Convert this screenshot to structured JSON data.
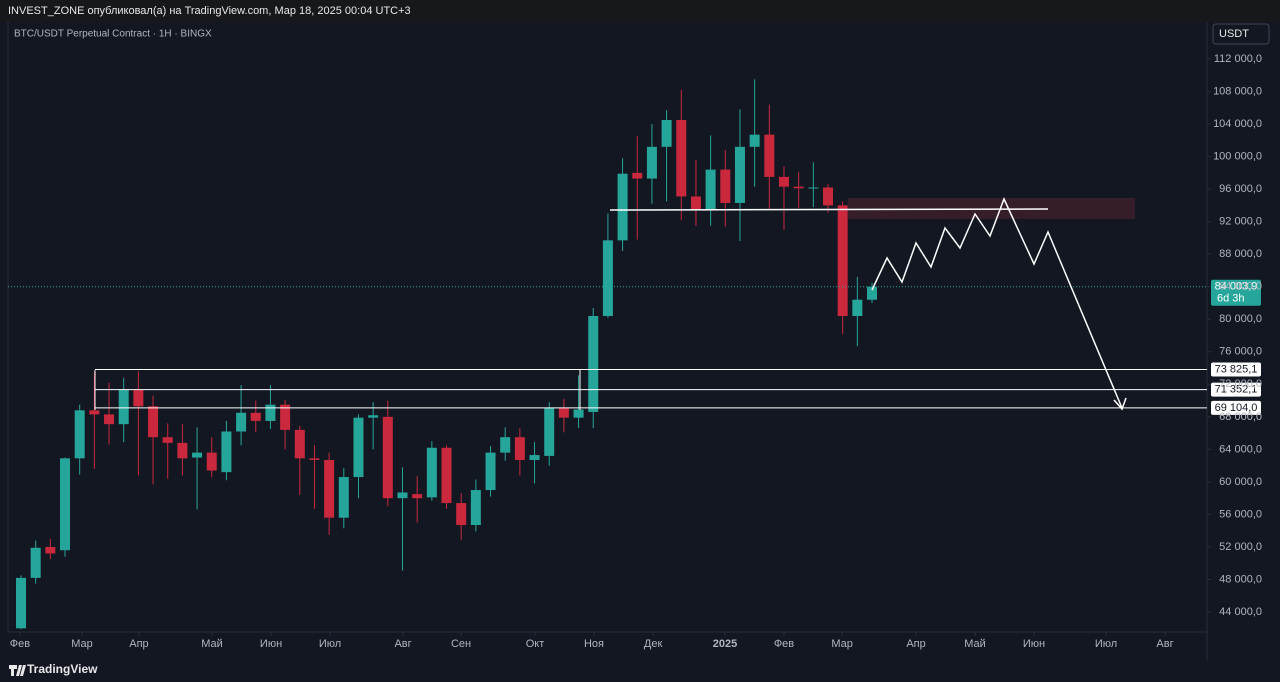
{
  "header": {
    "publisher": "INVEST_ZONE опубликовал(а) на TradingView.com, Мар 18, 2025 00:04 UTC+3"
  },
  "chart_data": {
    "type": "candlestick",
    "title": "BTC/USDT Perpetual Contract · 1H · BINGX",
    "currency": "USDT",
    "up_color": "#26a69a",
    "down_color": "#c9283d",
    "x": [
      0,
      1,
      2,
      3,
      4,
      5,
      6,
      7,
      8,
      9,
      10,
      11,
      12,
      13,
      14,
      15,
      16,
      17,
      18,
      19,
      20,
      21,
      22,
      23,
      24,
      25,
      26,
      27,
      28,
      29,
      30,
      31,
      32,
      33,
      34,
      35,
      36,
      37,
      38,
      39,
      40,
      41,
      42,
      43,
      44,
      45,
      46,
      47,
      48,
      49,
      50,
      51,
      52,
      53,
      54,
      55,
      56,
      57,
      58
    ],
    "open": [
      42000,
      48200,
      52000,
      51600,
      62900,
      68800,
      68300,
      67100,
      71300,
      69300,
      65500,
      64800,
      63000,
      63600,
      61200,
      66200,
      68500,
      67500,
      69500,
      66400,
      62900,
      62700,
      55600,
      60600,
      67900,
      68000,
      58000,
      58500,
      58100,
      64200,
      57400,
      54700,
      59000,
      63600,
      65500,
      62700,
      63200,
      69100,
      67900,
      68600,
      80400,
      89700,
      98000,
      97300,
      101200,
      104500,
      95100,
      93500,
      98400,
      94300,
      101200,
      102700,
      97500,
      96300,
      96100,
      96200,
      94000,
      80400,
      82400
    ],
    "high": [
      48500,
      52800,
      53000,
      63000,
      69500,
      73500,
      72200,
      72800,
      73600,
      70600,
      67200,
      67100,
      66700,
      65500,
      67500,
      71900,
      70000,
      71900,
      70100,
      66900,
      64500,
      63600,
      61700,
      68300,
      69800,
      70000,
      61800,
      60700,
      65000,
      64500,
      58600,
      60300,
      64400,
      66700,
      66600,
      64900,
      69800,
      70200,
      73100,
      81400,
      93000,
      99800,
      102500,
      104000,
      105700,
      108200,
      99600,
      102600,
      100800,
      105800,
      109500,
      106400,
      98800,
      98100,
      99300,
      96600,
      94500,
      85200,
      84500
    ],
    "low": [
      41900,
      47500,
      50500,
      50800,
      60900,
      61600,
      64600,
      64900,
      60800,
      59700,
      60400,
      60800,
      56600,
      60600,
      60200,
      64500,
      66100,
      66500,
      64000,
      58400,
      56700,
      53500,
      54300,
      58000,
      64000,
      57000,
      49100,
      55000,
      57700,
      56700,
      52900,
      53900,
      58200,
      62600,
      60800,
      59800,
      62000,
      66100,
      66600,
      66600,
      80200,
      88400,
      89800,
      94200,
      94500,
      92200,
      91500,
      91500,
      91400,
      89600,
      96300,
      93400,
      91000,
      93700,
      93800,
      93100,
      78200,
      76700,
      82000
    ],
    "close": [
      48200,
      51900,
      51200,
      62900,
      68800,
      68300,
      67100,
      71300,
      69300,
      65500,
      64800,
      62900,
      63600,
      61400,
      66200,
      68500,
      67500,
      69500,
      66400,
      62900,
      62700,
      55600,
      60600,
      67900,
      68200,
      58000,
      58700,
      58000,
      64200,
      57400,
      54700,
      59000,
      63600,
      65500,
      62700,
      63300,
      69100,
      67900,
      68900,
      80400,
      89700,
      97900,
      97300,
      101200,
      104500,
      95100,
      93500,
      98400,
      94300,
      101200,
      102700,
      97500,
      96300,
      96100,
      96200,
      94000,
      80400,
      82400,
      84003.9
    ],
    "xlim": [
      -0.886,
      80.83
    ],
    "xticks": [
      {
        "value": -0.07,
        "label": "Фев"
      },
      {
        "value": 4.16,
        "label": "Мар"
      },
      {
        "value": 8.04,
        "label": "Апр"
      },
      {
        "value": 13.02,
        "label": "Май"
      },
      {
        "value": 17.04,
        "label": "Июн"
      },
      {
        "value": 21.06,
        "label": "Июл"
      },
      {
        "value": 26.04,
        "label": "Авг"
      },
      {
        "value": 29.99,
        "label": "Сен"
      },
      {
        "value": 35.03,
        "label": "Окт"
      },
      {
        "value": 39.05,
        "label": "Ноя"
      },
      {
        "value": 43.08,
        "label": "Дек"
      },
      {
        "value": 47.98,
        "label": "2025"
      },
      {
        "value": 52.0,
        "label": "Фев"
      },
      {
        "value": 55.96,
        "label": "Мар"
      },
      {
        "value": 61.0,
        "label": "Апр"
      },
      {
        "value": 65.02,
        "label": "Май"
      },
      {
        "value": 69.04,
        "label": "Июн"
      },
      {
        "value": 73.95,
        "label": "Июл"
      },
      {
        "value": 77.97,
        "label": "Авг"
      }
    ],
    "ylim": [
      41545,
      116550
    ],
    "yticks": [
      {
        "value": 44000,
        "label": "44 000,0"
      },
      {
        "value": 48000,
        "label": "48 000,0"
      },
      {
        "value": 52000,
        "label": "52 000,0"
      },
      {
        "value": 56000,
        "label": "56 000,0"
      },
      {
        "value": 60000,
        "label": "60 000,0"
      },
      {
        "value": 64000,
        "label": "64 000,0"
      },
      {
        "value": 68000,
        "label": "68 000,0"
      },
      {
        "value": 72000,
        "label": "72 000,0"
      },
      {
        "value": 76000,
        "label": "76 000,0"
      },
      {
        "value": 80000,
        "label": "80 000,0"
      },
      {
        "value": 84000,
        "label": "84 000,0"
      },
      {
        "value": 88000,
        "label": "88 000,0"
      },
      {
        "value": 92000,
        "label": "92 000,0"
      },
      {
        "value": 96000,
        "label": "96 000,0"
      },
      {
        "value": 100000,
        "label": "100 000,0"
      },
      {
        "value": 104000,
        "label": "104 000,0"
      },
      {
        "value": 108000,
        "label": "108 000,0"
      },
      {
        "value": 112000,
        "label": "112 000,0"
      }
    ],
    "levels": [
      {
        "value": 73825.1,
        "label": "73 825,1"
      },
      {
        "value": 71352.1,
        "label": "71 352,1"
      },
      {
        "value": 69104.0,
        "label": "69 104,0"
      }
    ],
    "last_price": {
      "value": 84003.9,
      "label": "84 003,9",
      "countdown": "6d 3h"
    }
  },
  "footer": {
    "brand": "TradingView"
  }
}
